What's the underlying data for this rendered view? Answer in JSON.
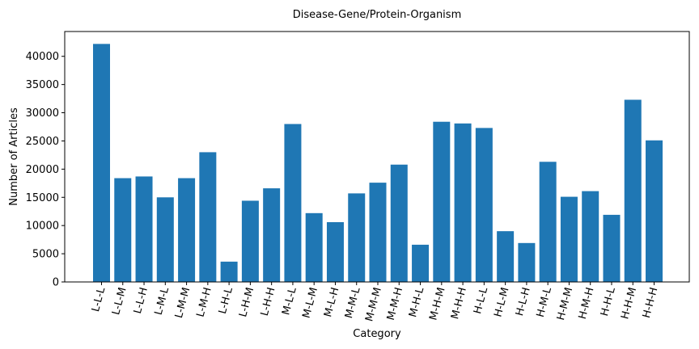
{
  "chart_data": {
    "type": "bar",
    "title": "Disease-Gene/Protein-Organism",
    "xlabel": "Category",
    "ylabel": "Number of Articles",
    "ylim": [
      0,
      44400
    ],
    "yticks": [
      0,
      5000,
      10000,
      15000,
      20000,
      25000,
      30000,
      35000,
      40000
    ],
    "grid": false,
    "color": "#1f77b4",
    "categories": [
      "L-L-L",
      "L-L-M",
      "L-L-H",
      "L-M-L",
      "L-M-M",
      "L-M-H",
      "L-H-L",
      "L-H-M",
      "L-H-H",
      "M-L-L",
      "M-L-M",
      "M-L-H",
      "M-M-L",
      "M-M-M",
      "M-M-H",
      "M-H-L",
      "M-H-M",
      "M-H-H",
      "H-L-L",
      "H-L-M",
      "H-L-H",
      "H-M-L",
      "H-M-M",
      "H-M-H",
      "H-H-L",
      "H-H-M",
      "H-H-H"
    ],
    "values": [
      42200,
      18400,
      18700,
      15000,
      18400,
      23000,
      3600,
      14400,
      16600,
      28000,
      12200,
      10600,
      15700,
      17600,
      20800,
      6600,
      28400,
      28100,
      27300,
      9000,
      6900,
      21300,
      15100,
      16100,
      11900,
      32300,
      25100
    ]
  }
}
